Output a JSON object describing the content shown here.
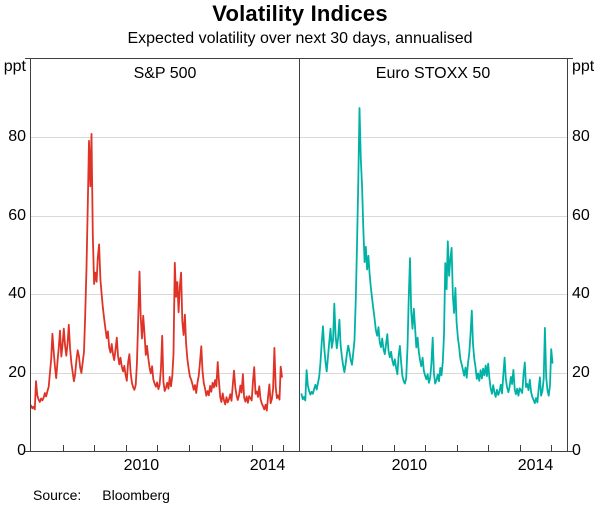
{
  "source": {
    "label": "Source:",
    "value": "Bloomberg"
  },
  "chart_data": {
    "type": "line",
    "title": "Volatility Indices",
    "subtitle": "Expected volatility over next 30 days, annualised",
    "unit": "ppt",
    "ylim": [
      0,
      100
    ],
    "yticks": [
      0,
      20,
      40,
      60,
      80
    ],
    "grid": true,
    "x_domain": [
      2007.0,
      2015.5
    ],
    "x_ticks_years": [
      2008,
      2009,
      2010,
      2011,
      2012,
      2013,
      2014,
      2015
    ],
    "x_year_labels": [
      {
        "text": "2010",
        "x": 2010.5
      },
      {
        "text": "2014",
        "x": 2014.5
      }
    ],
    "colors": {
      "grid": "#d9d9d9",
      "frame": "#3f3f3f",
      "sp500": "#df3327",
      "eurostoxx": "#00b2a5"
    },
    "panels": [
      {
        "label": "S&P 500",
        "color": "#df3327",
        "x0": 2007.0,
        "dx": 0.04,
        "values": [
          11.6,
          10.9,
          11.3,
          10.6,
          17.8,
          14.2,
          13.1,
          12.5,
          13.4,
          12.9,
          13.6,
          14.8,
          13.9,
          15.2,
          16.4,
          19.8,
          23.5,
          29.9,
          25.3,
          21.4,
          18.6,
          22.8,
          26.2,
          30.7,
          24.1,
          27.0,
          31.2,
          26.8,
          24.3,
          27.5,
          32.2,
          26.1,
          22.4,
          20.2,
          17.8,
          19.5,
          23.1,
          25.7,
          24.2,
          21.3,
          19.9,
          22.6,
          25.3,
          34.7,
          46.7,
          63.0,
          79.1,
          67.5,
          80.9,
          55.2,
          42.6,
          45.5,
          43.2,
          49.3,
          52.7,
          43.8,
          40.1,
          36.5,
          33.9,
          31.2,
          28.8,
          30.5,
          26.4,
          25.1,
          27.3,
          24.6,
          23.2,
          25.9,
          28.9,
          24.3,
          22.1,
          23.8,
          21.5,
          20.3,
          21.7,
          19.4,
          17.9,
          22.6,
          24.7,
          20.1,
          17.4,
          16.2,
          15.6,
          16.8,
          22.1,
          33.4,
          45.8,
          34.2,
          28.7,
          34.5,
          29.9,
          24.5,
          26.8,
          23.7,
          21.2,
          19.8,
          21.6,
          18.3,
          17.2,
          16.4,
          17.5,
          15.8,
          16.9,
          20.8,
          29.4,
          17.7,
          15.3,
          16.1,
          17.4,
          15.9,
          18.9,
          16.5,
          19.2,
          24.8,
          48.0,
          39.3,
          43.1,
          35.4,
          41.8,
          45.5,
          33.2,
          29.6,
          34.8,
          27.4,
          23.4,
          21.1,
          19.0,
          18.2,
          17.1,
          15.6,
          16.8,
          14.8,
          17.5,
          19.1,
          22.7,
          26.7,
          20.5,
          17.3,
          16.0,
          14.1,
          15.3,
          14.2,
          16.6,
          15.1,
          17.4,
          16.2,
          18.1,
          16.5,
          22.7,
          18.0,
          13.8,
          12.5,
          14.7,
          12.9,
          11.9,
          13.7,
          12.4,
          13.2,
          14.5,
          12.8,
          16.9,
          20.5,
          16.2,
          14.1,
          13.0,
          14.3,
          16.7,
          14.9,
          19.6,
          13.7,
          12.6,
          13.9,
          12.3,
          14.0,
          13.5,
          12.9,
          17.8,
          21.4,
          14.6,
          15.2,
          13.8,
          16.5,
          13.3,
          12.1,
          11.4,
          10.6,
          11.8,
          10.3,
          13.9,
          17.0,
          12.2,
          13.3,
          15.9,
          26.3,
          16.3,
          13.5,
          14.2,
          13.1,
          21.5,
          18.9
        ]
      },
      {
        "label": "Euro STOXX 50",
        "color": "#00b2a5",
        "x0": 2007.08,
        "dx": 0.04,
        "values": [
          14.5,
          13.2,
          13.8,
          12.9,
          20.6,
          16.8,
          15.3,
          14.4,
          15.1,
          14.6,
          15.8,
          16.9,
          15.7,
          17.3,
          18.9,
          22.4,
          27.6,
          31.8,
          26.4,
          22.7,
          20.3,
          24.1,
          27.9,
          31.2,
          26.3,
          28.4,
          37.6,
          29.3,
          26.2,
          28.9,
          33.5,
          27.1,
          24.0,
          21.9,
          20.1,
          22.3,
          24.8,
          26.9,
          25.4,
          23.2,
          22.0,
          24.9,
          28.3,
          38.9,
          52.4,
          68.9,
          87.5,
          74.6,
          67.3,
          56.8,
          48.2,
          52.1,
          46.3,
          49.8,
          45.2,
          41.6,
          38.9,
          36.2,
          33.5,
          30.8,
          29.4,
          31.6,
          27.8,
          26.5,
          28.7,
          26.0,
          24.7,
          27.2,
          29.8,
          25.6,
          23.9,
          25.3,
          23.1,
          21.8,
          23.4,
          21.2,
          19.6,
          24.3,
          26.8,
          22.4,
          19.1,
          17.8,
          17.2,
          18.6,
          26.4,
          38.7,
          49.2,
          35.6,
          31.2,
          36.3,
          31.8,
          26.4,
          28.9,
          25.3,
          23.1,
          21.6,
          23.8,
          20.4,
          19.2,
          18.3,
          19.6,
          17.4,
          18.7,
          22.3,
          28.9,
          19.8,
          17.2,
          18.1,
          19.5,
          17.8,
          21.2,
          19.3,
          22.8,
          29.6,
          47.9,
          41.3,
          53.5,
          44.7,
          48.9,
          51.8,
          39.4,
          35.2,
          41.6,
          32.8,
          28.9,
          26.3,
          23.4,
          22.1,
          20.6,
          19.2,
          21.3,
          18.7,
          22.4,
          25.1,
          29.7,
          35.8,
          27.3,
          23.5,
          21.2,
          18.4,
          19.8,
          17.9,
          20.6,
          18.5,
          21.0,
          19.3,
          21.8,
          19.1,
          22.3,
          18.6,
          15.9,
          14.6,
          16.8,
          14.9,
          13.8,
          15.6,
          14.3,
          15.2,
          16.9,
          14.7,
          19.3,
          23.8,
          18.4,
          16.2,
          15.0,
          16.4,
          18.9,
          17.1,
          20.7,
          15.8,
          14.5,
          15.9,
          14.1,
          16.0,
          15.4,
          14.8,
          19.4,
          22.6,
          16.3,
          17.1,
          15.5,
          18.2,
          15.0,
          13.8,
          13.0,
          12.2,
          13.5,
          12.4,
          15.7,
          18.8,
          14.1,
          15.3,
          18.4,
          31.4,
          18.9,
          15.4,
          14.1,
          16.8,
          26.0,
          22.5
        ]
      }
    ]
  }
}
